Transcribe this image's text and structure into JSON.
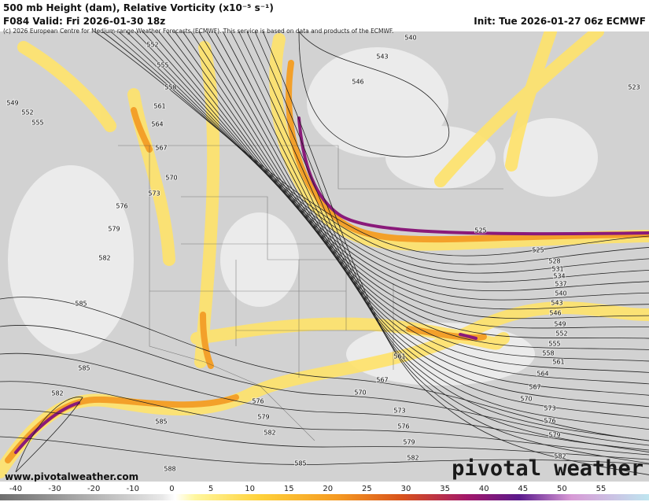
{
  "header": {
    "title": "500 mb Height (dam), Relative Vorticity (x10⁻⁵ s⁻¹)",
    "valid": "F084 Valid: Fri 2026-01-30 18z",
    "init": "Init: Tue 2026-01-27 06z ECMWF",
    "credit": "(c) 2026 European Centre for Medium-range Weather Forecasts (ECMWF). This service is based on data and products of the ECMWF."
  },
  "contour_labels": [
    540,
    543,
    546,
    552,
    555,
    558,
    561,
    564,
    567,
    570,
    573,
    576,
    579,
    582,
    585,
    585,
    582,
    585,
    588,
    585,
    582,
    579,
    576,
    570,
    567,
    561,
    573,
    576,
    579,
    582,
    525,
    525,
    528,
    531,
    534,
    537,
    540,
    543,
    546,
    549,
    552,
    555,
    558,
    561,
    564,
    567,
    570,
    573,
    576,
    579,
    582,
    549,
    552,
    555,
    523
  ],
  "colorbar": {
    "ticks": [
      -40,
      -30,
      -20,
      -10,
      0,
      5,
      10,
      15,
      20,
      25,
      30,
      35,
      40,
      45,
      50,
      55
    ]
  },
  "footer": {
    "website": "www.pivotalweather.com",
    "logo": "pivotal weather"
  }
}
